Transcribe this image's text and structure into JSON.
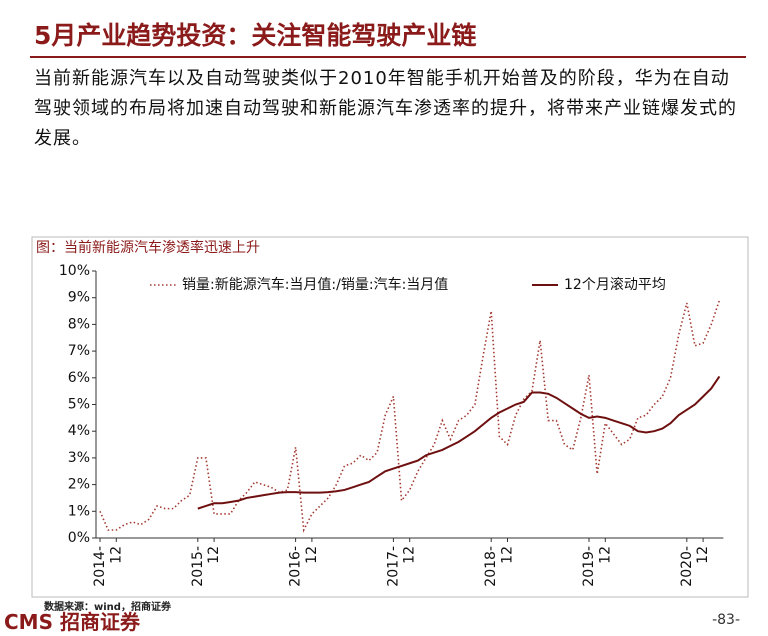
{
  "header": {
    "title": "5月产业趋势投资：关注智能驾驶产业链"
  },
  "body": "当前新能源汽车以及自动驾驶类似于2010年智能手机开始普及的阶段，华为在自动驾驶领域的布局将加速自动驾驶和新能源汽车渗透率的提升，将带来产业链爆发式的发展。",
  "chart_data": {
    "type": "line",
    "title": "图：当前新能源汽车渗透率迅速上升",
    "categories": [
      "2014-",
      null,
      "12",
      null,
      null,
      null,
      null,
      null,
      null,
      null,
      null,
      null,
      "2015-",
      null,
      "12",
      null,
      null,
      null,
      null,
      null,
      null,
      null,
      null,
      null,
      "2016-",
      null,
      "12",
      null,
      null,
      null,
      null,
      null,
      null,
      null,
      null,
      null,
      "2017-",
      null,
      "12",
      null,
      null,
      null,
      null,
      null,
      null,
      null,
      null,
      null,
      "2018-",
      null,
      "12",
      null,
      null,
      null,
      null,
      null,
      null,
      null,
      null,
      null,
      "2019-",
      null,
      "12",
      null,
      null,
      null,
      null,
      null,
      null,
      null,
      null,
      null,
      "2020-",
      null,
      "12",
      null,
      null
    ],
    "series": [
      {
        "name": "销量:新能源汽车:当月值:/销量:汽车:当月值",
        "color": "#a33a32",
        "dash": true,
        "values": [
          1.0,
          0.3,
          0.3,
          0.5,
          0.6,
          0.5,
          0.7,
          1.2,
          1.1,
          1.1,
          1.4,
          1.6,
          3.0,
          3.0,
          0.9,
          0.9,
          0.9,
          1.4,
          1.7,
          2.1,
          2.0,
          1.9,
          1.7,
          1.8,
          3.4,
          0.3,
          0.9,
          1.2,
          1.5,
          2.0,
          2.7,
          2.8,
          3.1,
          2.9,
          3.2,
          4.6,
          5.3,
          1.4,
          1.8,
          2.5,
          3.0,
          3.5,
          4.4,
          3.7,
          4.4,
          4.6,
          5.0,
          6.8,
          8.5,
          3.8,
          3.5,
          4.6,
          5.2,
          5.5,
          7.4,
          4.4,
          4.4,
          3.5,
          3.3,
          4.5,
          6.1,
          2.4,
          4.3,
          3.9,
          3.5,
          3.7,
          4.5,
          4.6,
          5.0,
          5.3,
          6.0,
          7.6,
          8.8,
          7.2,
          7.3,
          8.0,
          8.9
        ]
      },
      {
        "name": "12个月滚动平均",
        "color": "#6e1010",
        "dash": false,
        "values": [
          null,
          null,
          null,
          null,
          null,
          null,
          null,
          null,
          null,
          null,
          null,
          null,
          1.1,
          1.2,
          1.3,
          1.3,
          1.35,
          1.4,
          1.5,
          1.55,
          1.6,
          1.65,
          1.7,
          1.72,
          1.72,
          1.7,
          1.7,
          1.7,
          1.72,
          1.75,
          1.8,
          1.9,
          2.0,
          2.1,
          2.3,
          2.5,
          2.6,
          2.7,
          2.8,
          2.9,
          3.1,
          3.2,
          3.3,
          3.45,
          3.6,
          3.8,
          4.0,
          4.25,
          4.5,
          4.7,
          4.85,
          5.0,
          5.1,
          5.45,
          5.45,
          5.4,
          5.25,
          5.05,
          4.85,
          4.65,
          4.5,
          4.55,
          4.5,
          4.4,
          4.3,
          4.2,
          4.0,
          3.95,
          4.0,
          4.1,
          4.3,
          4.6,
          4.8,
          5.0,
          5.3,
          5.6,
          6.05
        ]
      }
    ],
    "ylim": [
      0,
      10
    ],
    "yticks": [
      {
        "value": 0,
        "label": "0%"
      },
      {
        "value": 1,
        "label": "1%"
      },
      {
        "value": 2,
        "label": "2%"
      },
      {
        "value": 3,
        "label": "3%"
      },
      {
        "value": 4,
        "label": "4%"
      },
      {
        "value": 5,
        "label": "5%"
      },
      {
        "value": 6,
        "label": "6%"
      },
      {
        "value": 7,
        "label": "7%"
      },
      {
        "value": 8,
        "label": "8%"
      },
      {
        "value": 9,
        "label": "9%"
      },
      {
        "value": 10,
        "label": "10%"
      }
    ],
    "source": "数据来源：wind，招商证券"
  },
  "footer": {
    "logo_en": "CMS",
    "logo_cn": "招商证券",
    "page": "-83-"
  }
}
